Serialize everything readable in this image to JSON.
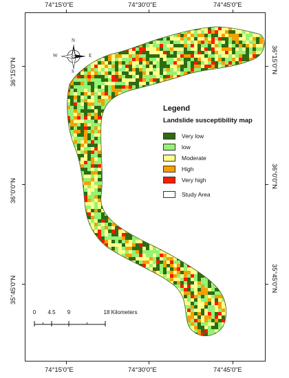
{
  "coords": {
    "top": [
      "74°15'0\"E",
      "74°30'0\"E",
      "74°45'0\"E"
    ],
    "bottom": [
      "74°15'0\"E",
      "74°30'0\"E",
      "74°45'0\"E"
    ],
    "left": [
      "36°15'0\"N",
      "36°0'0\"N",
      "35°45'0\"N"
    ],
    "right": [
      "36°15'0\"N",
      "36°0'0\"N",
      "35°45'0\"N"
    ]
  },
  "legend": {
    "title": "Legend",
    "subtitle": "Landslide susceptibility map",
    "classes": [
      {
        "label": "Very low",
        "color": "#2e6b12"
      },
      {
        "label": "low",
        "color": "#94f275"
      },
      {
        "label": "Moderate",
        "color": "#ffff8c"
      },
      {
        "label": "High",
        "color": "#f5a000"
      },
      {
        "label": "Very high",
        "color": "#ff1a00"
      }
    ],
    "study_area": {
      "label": "Study Area",
      "color": "#ffffff"
    }
  },
  "north_arrow": {
    "n": "N",
    "s": "S",
    "e": "E",
    "w": "W",
    "icon": "compass-rose-icon"
  },
  "scale_bar": {
    "ticks": [
      "0",
      "4.5",
      "9",
      "18 Kilometers"
    ],
    "tick_values_km": [
      0,
      4.5,
      9,
      18
    ]
  }
}
